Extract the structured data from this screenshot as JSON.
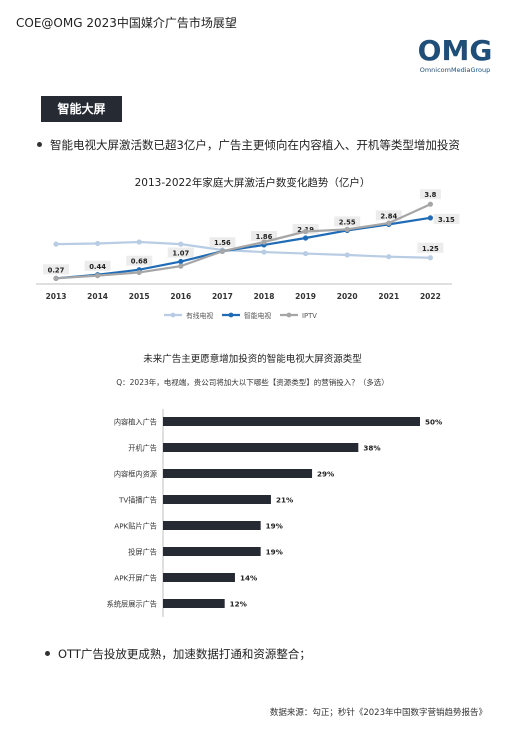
{
  "header": {
    "title": "COE@OMG 2023中国媒介广告市场展望"
  },
  "logo": {
    "mark": "OMG",
    "sub": "OmnicomMediaGroup",
    "color": "#1f4e79"
  },
  "section_tag": "智能大屏",
  "bullets": [
    "智能电视大屏激活数已超3亿户，广告主更倾向在内容植入、开机等类型增加投资",
    "OTT广告投放更成熟，加速数据打通和资源整合；"
  ],
  "source": "数据来源：勾正；秒针《2023年中国数字营销趋势报告》",
  "chart_data": [
    {
      "type": "line",
      "title": "2013-2022年家庭大屏激活户数变化趋势（亿户）",
      "x": [
        "2013",
        "2014",
        "2015",
        "2016",
        "2017",
        "2018",
        "2019",
        "2020",
        "2021",
        "2022"
      ],
      "series": [
        {
          "name": "有线电视",
          "color": "#b8cce4",
          "values": [
            1.9,
            1.93,
            2.0,
            1.9,
            1.62,
            1.52,
            1.45,
            1.38,
            1.3,
            1.25
          ],
          "labels": [
            null,
            null,
            null,
            null,
            null,
            null,
            null,
            null,
            null,
            "1.25"
          ]
        },
        {
          "name": "智能电视",
          "color": "#1f6bb5",
          "values": [
            0.27,
            0.44,
            0.68,
            1.07,
            1.56,
            1.86,
            2.19,
            2.55,
            2.84,
            3.15
          ],
          "labels": [
            "0.27",
            "0.44",
            "0.68",
            "1.07",
            "1.56",
            "1.86",
            "2.19",
            "2.55",
            "2.84",
            "3.15"
          ]
        },
        {
          "name": "IPTV",
          "color": "#a6a6a6",
          "values": [
            0.27,
            0.4,
            0.55,
            0.85,
            1.56,
            2.0,
            2.5,
            2.6,
            2.9,
            3.8
          ],
          "labels": [
            null,
            null,
            null,
            null,
            null,
            null,
            null,
            null,
            null,
            "3.8"
          ]
        }
      ],
      "ylim": [
        0,
        4
      ],
      "legend": "bottom"
    },
    {
      "type": "bar",
      "orientation": "horizontal",
      "title": "未来广告主更愿意增加投资的智能电视大屏资源类型",
      "subtitle": "Q：2023年，电视端，贵公司将加大以下哪些【资源类型】的营销投入？（多选）",
      "categories": [
        "内容植入广告",
        "开机广告",
        "内容框内资源",
        "TV插播广告",
        "APK贴片广告",
        "投屏广告",
        "APK开屏广告",
        "系统层展示广告"
      ],
      "values": [
        50,
        38,
        29,
        21,
        19,
        19,
        14,
        12
      ],
      "labels": [
        "50%",
        "38%",
        "29%",
        "21%",
        "19%",
        "19%",
        "14%",
        "12%"
      ],
      "color": "#262b33",
      "xlim": [
        0,
        50
      ]
    }
  ]
}
